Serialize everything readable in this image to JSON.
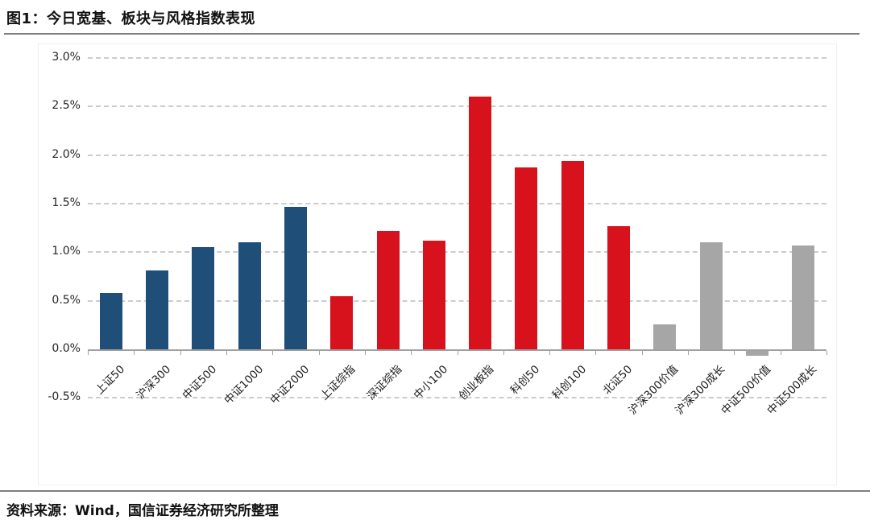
{
  "header": {
    "title": "图1：今日宽基、板块与风格指数表现"
  },
  "footer": {
    "source": "资料来源：Wind，国信证券经济研究所整理"
  },
  "chart_data": {
    "type": "bar",
    "title": "图1：今日宽基、板块与风格指数表现",
    "unit": "%",
    "categories": [
      "上证50",
      "沪深300",
      "中证500",
      "中证1000",
      "中证2000",
      "上证综指",
      "深证综指",
      "中小100",
      "创业板指",
      "科创50",
      "科创100",
      "北证50",
      "沪深300价值",
      "沪深300成长",
      "中证500价值",
      "中证500成长"
    ],
    "values": [
      0.58,
      0.81,
      1.05,
      1.1,
      1.47,
      0.55,
      1.22,
      1.12,
      2.6,
      1.87,
      1.94,
      1.27,
      0.26,
      1.1,
      -0.05,
      1.07
    ],
    "bar_groups": [
      "broad",
      "broad",
      "broad",
      "broad",
      "broad",
      "sector",
      "sector",
      "sector",
      "sector",
      "sector",
      "sector",
      "sector",
      "style",
      "style",
      "style",
      "style"
    ],
    "group_colors": {
      "broad": "#1F4E79",
      "sector": "#D7121C",
      "style": "#A6A6A6"
    },
    "xlabel": "",
    "ylabel": "",
    "ylim": [
      -0.5,
      3.0
    ],
    "ytick_step": 0.5,
    "ytick_labels": [
      "3.0%",
      "2.5%",
      "2.0%",
      "1.5%",
      "1.0%",
      "0.5%",
      "0.0%",
      "-0.5%"
    ],
    "grid": "dashed-horizontal",
    "legend": "none",
    "axis_color": "#a0a0a0",
    "gridline_color": "#cccccc"
  }
}
